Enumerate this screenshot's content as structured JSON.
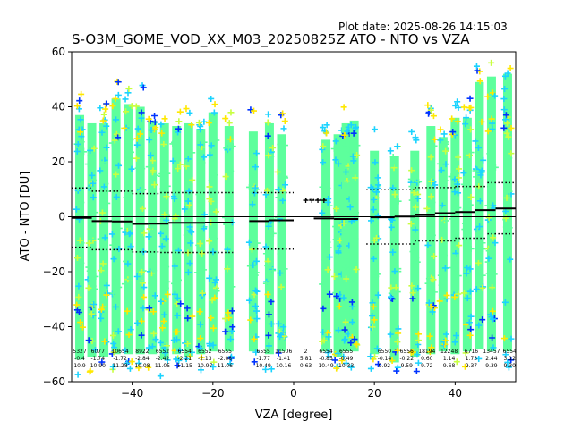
{
  "header": {
    "plot_date": "Plot date: 2025-08-26 14:15:03",
    "title": "S-O3M_GOME_VOD_XX_M03_20250825Z ATO - NTO vs VZA"
  },
  "chart_data": {
    "type": "scatter",
    "xlabel": "VZA [degree]",
    "ylabel": "ATO - NTO [DU]",
    "xlim": [
      -55,
      55
    ],
    "ylim": [
      -60,
      60
    ],
    "xticks": [
      -40,
      -20,
      0,
      20,
      40
    ],
    "yticks": [
      -60,
      -40,
      -20,
      0,
      20,
      40,
      60
    ],
    "grid": false,
    "reference_line_y": 0,
    "marker": "+",
    "colors": {
      "cyan": "#1ad3ff",
      "green": "#5dff9c",
      "yellow": "#ffe800",
      "blue": "#0033ff",
      "lime": "#c8ff40",
      "mean": "#000000"
    },
    "columns": [
      {
        "vza": -53,
        "min": -58,
        "max": 45,
        "mean": -0.4
      },
      {
        "vza": -50,
        "min": -57,
        "max": 42,
        "mean": -0.6
      },
      {
        "vza": -47,
        "min": -57,
        "max": 42,
        "mean": -1.5
      },
      {
        "vza": -44,
        "min": -56,
        "max": 51,
        "mean": -1.7
      },
      {
        "vza": -41,
        "min": -56,
        "max": 49,
        "mean": -1.8
      },
      {
        "vza": -38,
        "min": -56,
        "max": 48,
        "mean": -2.5
      },
      {
        "vza": -35,
        "min": -56,
        "max": 43,
        "mean": -2.4
      },
      {
        "vza": -32,
        "min": -58,
        "max": 42,
        "mean": -2.4
      },
      {
        "vza": -29,
        "min": -56,
        "max": 41,
        "mean": -2.1
      },
      {
        "vza": -26,
        "min": -57,
        "max": 42,
        "mean": -2.2
      },
      {
        "vza": -23,
        "min": -56,
        "max": 40,
        "mean": -2.1
      },
      {
        "vza": -20,
        "min": -55,
        "max": 46,
        "mean": -2.1
      },
      {
        "vza": -16,
        "min": -55,
        "max": 41,
        "mean": -2.1
      },
      {
        "vza": -10,
        "min": -55,
        "max": 39,
        "mean": -1.5
      },
      {
        "vza": -6,
        "min": -56,
        "max": 42,
        "mean": -1.4
      },
      {
        "vza": -3,
        "min": -55,
        "max": 38,
        "mean": -1.3
      },
      {
        "vza": 8,
        "min": -55,
        "max": 36,
        "mean": -0.8
      },
      {
        "vza": 11,
        "min": -57,
        "max": 38,
        "mean": -0.7
      },
      {
        "vza": 13,
        "min": -55,
        "max": 42,
        "mean": -0.6
      },
      {
        "vza": 15,
        "min": -55,
        "max": 43,
        "mean": -0.6
      },
      {
        "vza": 20,
        "min": -56,
        "max": 32,
        "mean": -0.1
      },
      {
        "vza": 25,
        "min": -59,
        "max": 30,
        "mean": -0.2
      },
      {
        "vza": 30,
        "min": -57,
        "max": 32,
        "mean": 0.6
      },
      {
        "vza": 34,
        "min": -56,
        "max": 41,
        "mean": 1.1
      },
      {
        "vza": 37,
        "min": -55,
        "max": 37,
        "mean": 1.3
      },
      {
        "vza": 40,
        "min": -56,
        "max": 44,
        "mean": 1.7
      },
      {
        "vza": 43,
        "min": -55,
        "max": 44,
        "mean": 1.8
      },
      {
        "vza": 46,
        "min": -54,
        "max": 57,
        "mean": 2.2
      },
      {
        "vza": 49,
        "min": -55,
        "max": 59,
        "mean": 2.4
      },
      {
        "vza": 53,
        "min": -55,
        "max": 60,
        "mean": 3.1
      }
    ],
    "mean_steps": [
      {
        "x0": -55,
        "x1": -50,
        "y": -0.4
      },
      {
        "x0": -50,
        "x1": -45,
        "y": -1.6
      },
      {
        "x0": -45,
        "x1": -40,
        "y": -1.7
      },
      {
        "x0": -40,
        "x1": -36,
        "y": -2.6
      },
      {
        "x0": -36,
        "x1": -31,
        "y": -2.5
      },
      {
        "x0": -31,
        "x1": -22,
        "y": -2.2
      },
      {
        "x0": -22,
        "x1": -15,
        "y": -2.1
      },
      {
        "x0": -11,
        "x1": -6,
        "y": -1.6
      },
      {
        "x0": -6,
        "x1": 0,
        "y": -1.3
      },
      {
        "x0": 5,
        "x1": 10,
        "y": -0.6
      },
      {
        "x0": 10,
        "x1": 16,
        "y": -0.8
      },
      {
        "x0": 19,
        "x1": 25,
        "y": -0.2
      },
      {
        "x0": 25,
        "x1": 30,
        "y": 0.1
      },
      {
        "x0": 30,
        "x1": 35,
        "y": 0.6
      },
      {
        "x0": 35,
        "x1": 40,
        "y": 1.3
      },
      {
        "x0": 40,
        "x1": 45,
        "y": 1.7
      },
      {
        "x0": 45,
        "x1": 50,
        "y": 2.4
      },
      {
        "x0": 50,
        "x1": 55,
        "y": 3.0
      }
    ],
    "upper_sigma_steps": [
      {
        "x0": -55,
        "x1": -50,
        "y": 10.5
      },
      {
        "x0": -50,
        "x1": -40,
        "y": 9.3
      },
      {
        "x0": -40,
        "x1": -33,
        "y": 8.4
      },
      {
        "x0": -33,
        "x1": -15,
        "y": 8.8
      },
      {
        "x0": -10,
        "x1": 0,
        "y": 8.8
      },
      {
        "x0": 3,
        "x1": 8,
        "y": 6.2
      },
      {
        "x0": 18,
        "x1": 30,
        "y": 10.0
      },
      {
        "x0": 30,
        "x1": 40,
        "y": 10.6
      },
      {
        "x0": 40,
        "x1": 48,
        "y": 11.0
      },
      {
        "x0": 48,
        "x1": 55,
        "y": 12.4
      }
    ],
    "lower_sigma_steps": [
      {
        "x0": -55,
        "x1": -50,
        "y": -11.1
      },
      {
        "x0": -50,
        "x1": -40,
        "y": -12.0
      },
      {
        "x0": -40,
        "x1": -33,
        "y": -12.8
      },
      {
        "x0": -33,
        "x1": -15,
        "y": -13.0
      },
      {
        "x0": -10,
        "x1": 0,
        "y": -11.8
      },
      {
        "x0": 18,
        "x1": 30,
        "y": -9.9
      },
      {
        "x0": 30,
        "x1": 40,
        "y": -8.8
      },
      {
        "x0": 40,
        "x1": 48,
        "y": -7.8
      },
      {
        "x0": 48,
        "x1": 55,
        "y": -6.2
      }
    ],
    "annotations": [
      {
        "x": -53,
        "lines": [
          "5327",
          "-0.4",
          "10.9"
        ]
      },
      {
        "x": -48.5,
        "lines": [
          "6077",
          "-1.74",
          "10.90"
        ]
      },
      {
        "x": -43,
        "lines": [
          "10654",
          "-1.72",
          "11.28"
        ]
      },
      {
        "x": -37.5,
        "lines": [
          "8922",
          "-2.84",
          "10.08"
        ]
      },
      {
        "x": -32.5,
        "lines": [
          "6552",
          "-2.42",
          "11.05"
        ]
      },
      {
        "x": -27,
        "lines": [
          "6554",
          "-2.21",
          "11.15"
        ]
      },
      {
        "x": -22,
        "lines": [
          "6552",
          "-2.13",
          "10.97"
        ]
      },
      {
        "x": -17,
        "lines": [
          "6555",
          "-2.08",
          "11.06"
        ]
      },
      {
        "x": -7.5,
        "lines": [
          "6555",
          "-1.77",
          "10.49"
        ]
      },
      {
        "x": -2.5,
        "lines": [
          "11506",
          "-1.41",
          "10.16"
        ]
      },
      {
        "x": 3,
        "lines": [
          "2",
          "5.81",
          "0.63"
        ]
      },
      {
        "x": 8,
        "lines": [
          "6554",
          "-0.85",
          "10.49"
        ]
      },
      {
        "x": 13,
        "lines": [
          "6555",
          "-0.49",
          "10.33"
        ]
      },
      {
        "x": 22.5,
        "lines": [
          "6550",
          "-0.14",
          "9.92"
        ]
      },
      {
        "x": 28,
        "lines": [
          "6556",
          "-0.22",
          "9.59"
        ]
      },
      {
        "x": 33,
        "lines": [
          "18194",
          "0.60",
          "9.72"
        ]
      },
      {
        "x": 38.5,
        "lines": [
          "12248",
          "1.14",
          "9.68"
        ]
      },
      {
        "x": 44,
        "lines": [
          "6716",
          "1.73",
          "9.37"
        ]
      },
      {
        "x": 49,
        "lines": [
          "13457",
          "2.44",
          "9.39"
        ]
      },
      {
        "x": 53.5,
        "lines": [
          "6554",
          "3.12",
          "9.30"
        ]
      }
    ]
  }
}
